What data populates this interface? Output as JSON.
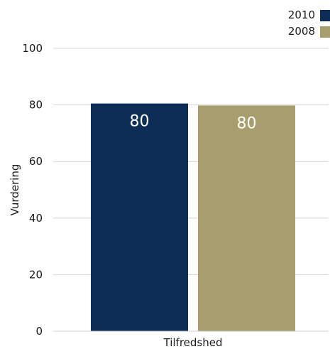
{
  "chart_data": {
    "type": "bar",
    "categories": [
      "Tilfredshed"
    ],
    "series": [
      {
        "name": "2010",
        "values": [
          80
        ],
        "label": "80",
        "color": "#0c2d55"
      },
      {
        "name": "2008",
        "values": [
          80
        ],
        "label": "80",
        "color": "#a89d6c"
      }
    ],
    "xlabel": "",
    "ylabel": "Vurdering",
    "ylim": [
      0,
      100
    ],
    "yticks": [
      0,
      20,
      40,
      60,
      80,
      100
    ],
    "grid": true,
    "legend_position": "top-right",
    "bar_value_estimates": [
      80.5,
      79.8
    ]
  }
}
